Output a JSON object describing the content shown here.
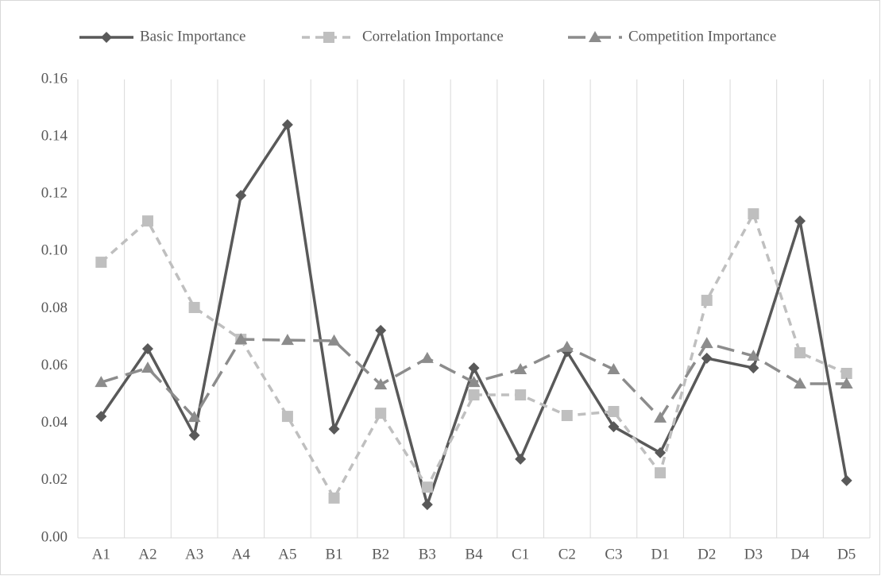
{
  "chart_data": {
    "type": "line",
    "categories": [
      "A1",
      "A2",
      "A3",
      "A4",
      "A5",
      "B1",
      "B2",
      "B3",
      "B4",
      "C1",
      "C2",
      "C3",
      "D1",
      "D2",
      "D3",
      "D4",
      "D5"
    ],
    "series": [
      {
        "name": "Basic Importance",
        "color": "#595959",
        "dash": "solid",
        "marker": "diamond",
        "values": [
          0.0424,
          0.066,
          0.0358,
          0.1195,
          0.1442,
          0.038,
          0.0724,
          0.0116,
          0.0593,
          0.0275,
          0.065,
          0.0388,
          0.0297,
          0.0627,
          0.0593,
          0.1106,
          0.02
        ]
      },
      {
        "name": "Correlation Importance",
        "color": "#bfbfbf",
        "dash": "short",
        "marker": "square",
        "values": [
          0.0962,
          0.1106,
          0.0804,
          0.0693,
          0.0424,
          0.0139,
          0.0435,
          0.0177,
          0.0499,
          0.0499,
          0.0427,
          0.0441,
          0.0227,
          0.0829,
          0.1131,
          0.0646,
          0.0574
        ]
      },
      {
        "name": "Competition Importance",
        "color": "#8c8c8c",
        "dash": "long",
        "marker": "triangle",
        "values": [
          0.0543,
          0.0593,
          0.0421,
          0.0693,
          0.069,
          0.0688,
          0.0535,
          0.0627,
          0.0543,
          0.0588,
          0.0666,
          0.0588,
          0.0419,
          0.0679,
          0.0635,
          0.0538,
          0.0538
        ]
      }
    ],
    "ylim": [
      0,
      0.16
    ],
    "yticks": [
      {
        "value": 0,
        "label": "0.00"
      },
      {
        "value": 0.02,
        "label": "0.02"
      },
      {
        "value": 0.04,
        "label": "0.04"
      },
      {
        "value": 0.06,
        "label": "0.06"
      },
      {
        "value": 0.08,
        "label": "0.08"
      },
      {
        "value": 0.1,
        "label": "0.10"
      },
      {
        "value": 0.12,
        "label": "0.12"
      },
      {
        "value": 0.14,
        "label": "0.14"
      },
      {
        "value": 0.16,
        "label": "0.16"
      }
    ],
    "legend": "top"
  }
}
